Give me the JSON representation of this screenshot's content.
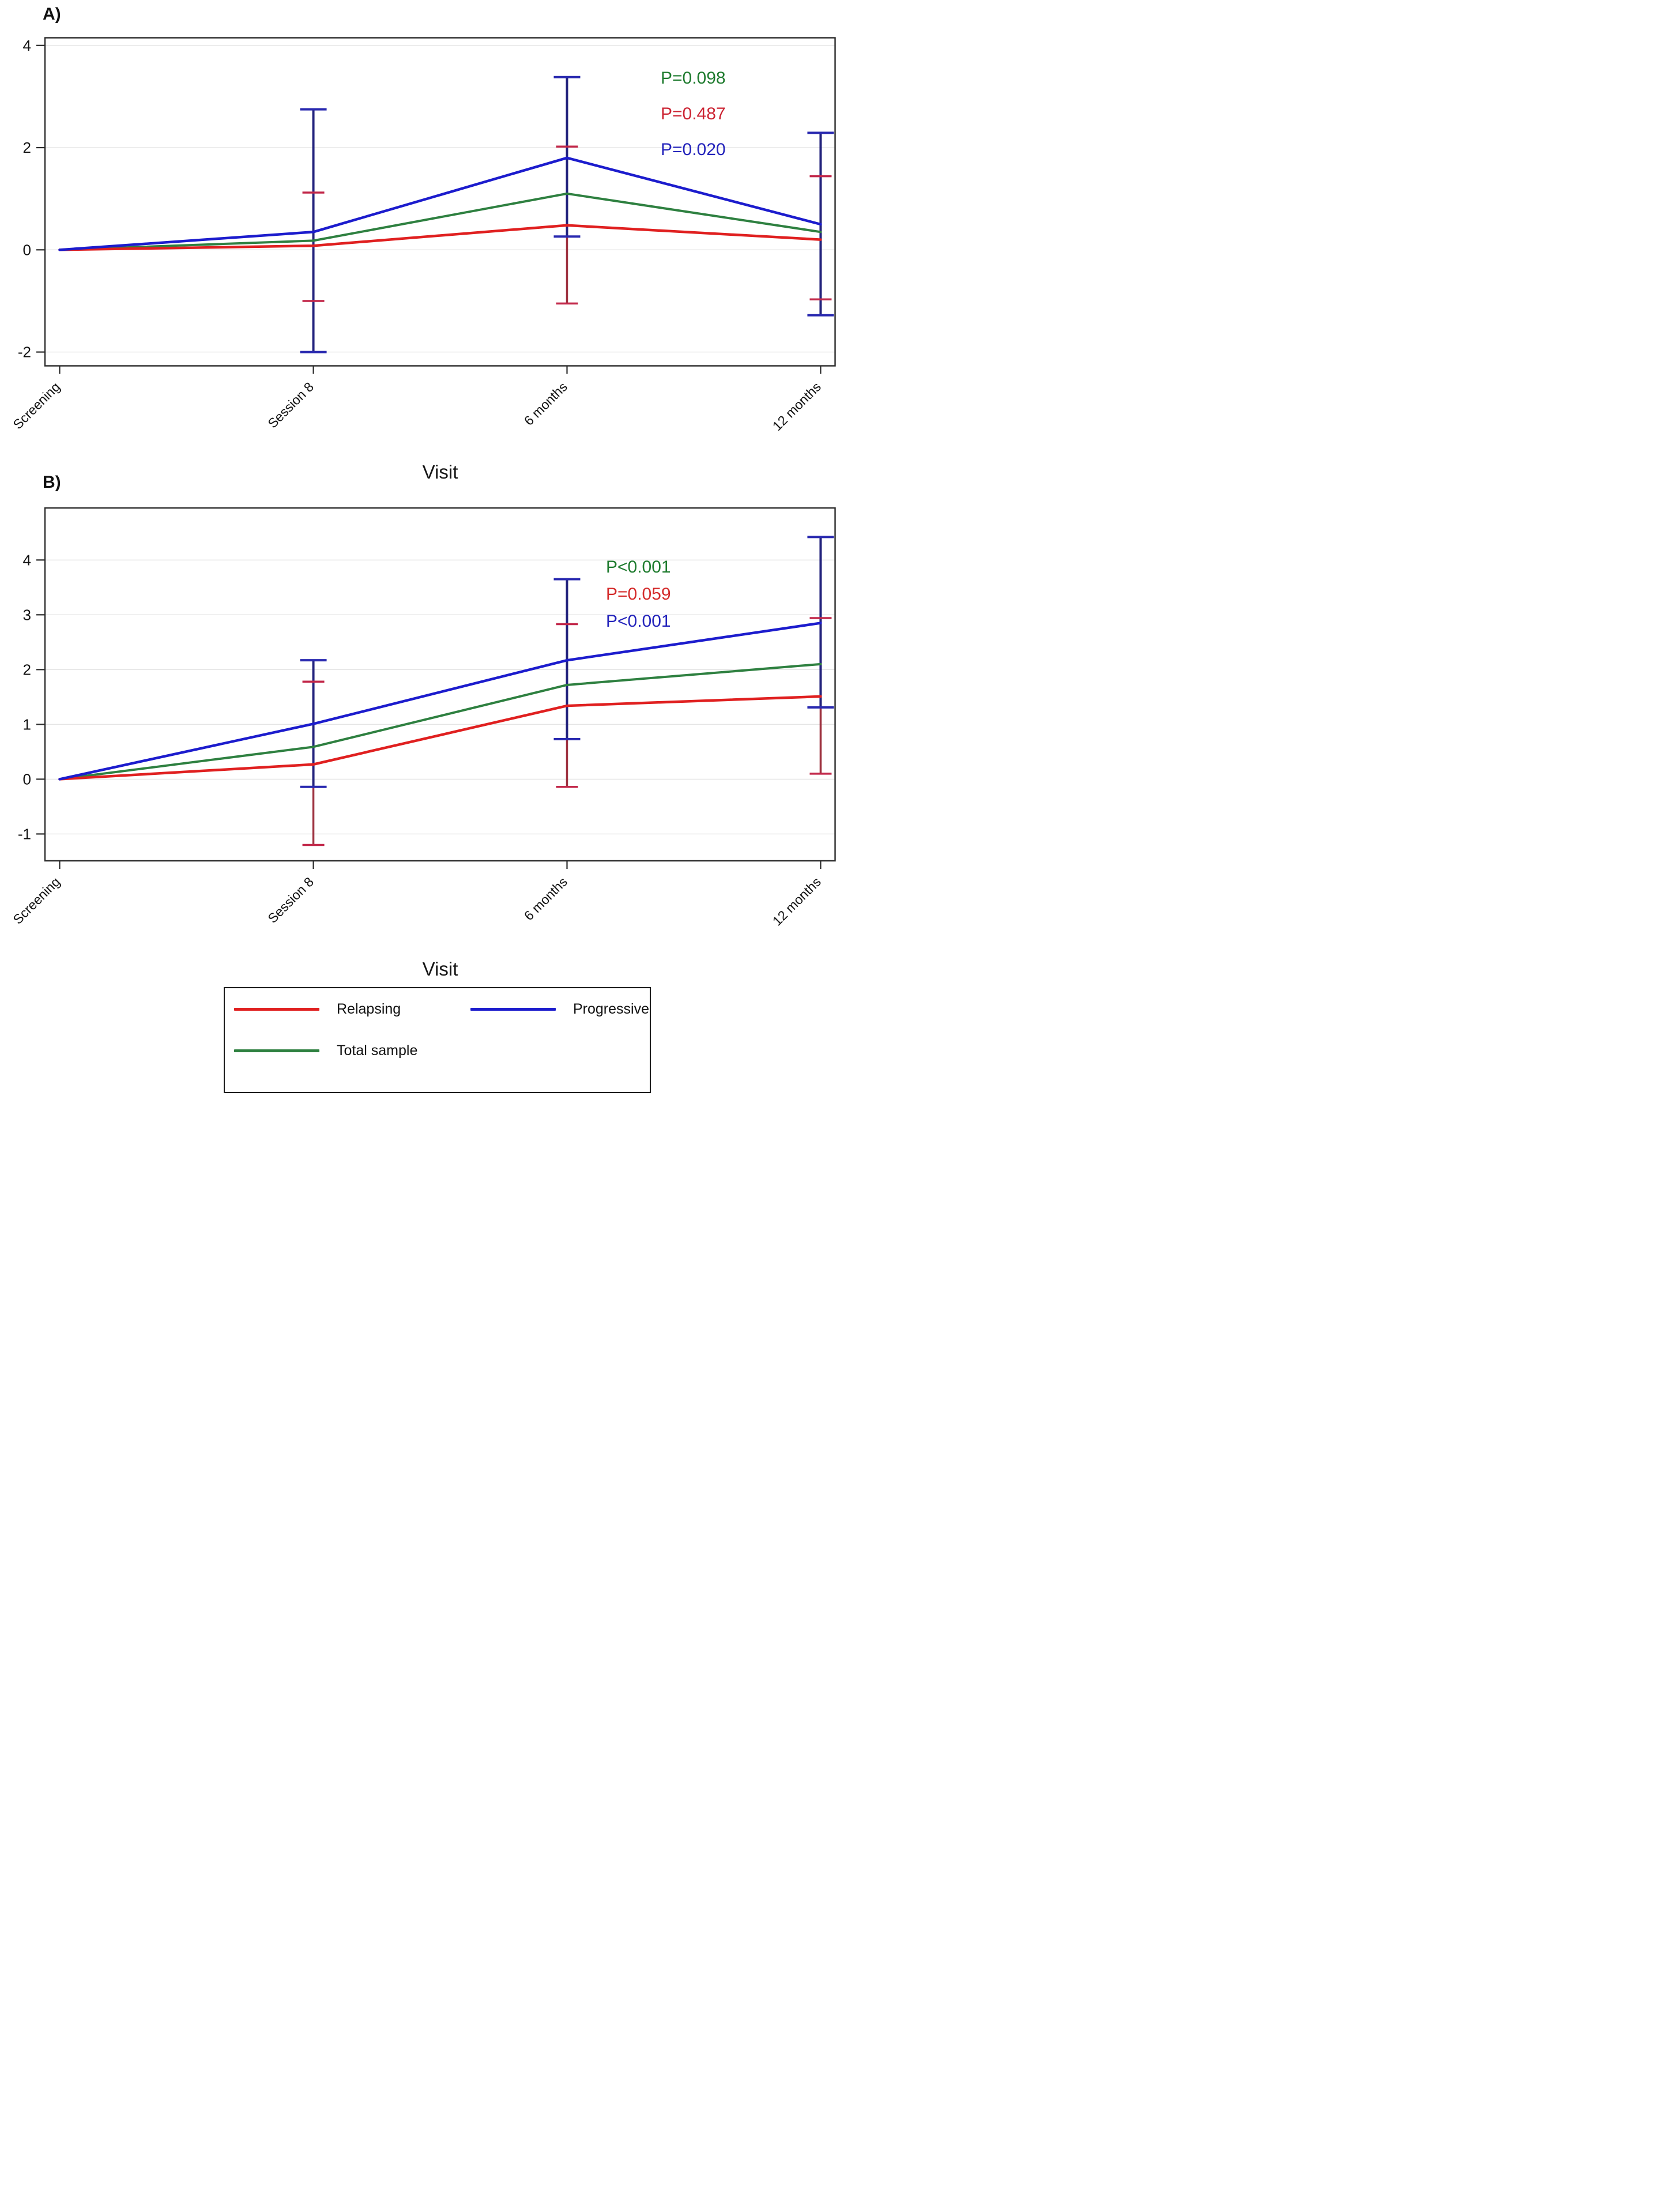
{
  "figure": {
    "panels": [
      {
        "label": "A)"
      },
      {
        "label": "B)"
      }
    ],
    "x_axis_title": "Visit"
  },
  "legend": {
    "items": [
      {
        "name": "relapsing",
        "label": "Relapsing",
        "color": "#e02020"
      },
      {
        "name": "progressive",
        "label": "Progressive",
        "color": "#1c1ccd"
      },
      {
        "name": "total",
        "label": "Total sample",
        "color": "#2e8040"
      }
    ]
  },
  "chart_data": [
    {
      "type": "line",
      "panel": "A",
      "xlabel": "Visit",
      "categories": [
        "Screening",
        "Session 8",
        "6 months",
        "12 months"
      ],
      "yticks": [
        -2,
        0,
        2,
        4
      ],
      "ylim": [
        -2.27,
        4.15
      ],
      "grid": true,
      "series": [
        {
          "name": "Total sample",
          "color": "#2e8040",
          "values": [
            0,
            0.18,
            1.1,
            0.35
          ]
        },
        {
          "name": "Relapsing",
          "color": "#e02020",
          "bar_color": "#9e3240",
          "cap_color": "#c2284a",
          "values": [
            0,
            0.08,
            0.48,
            0.2
          ],
          "ci_low": [
            null,
            -1.0,
            -1.05,
            -0.97
          ],
          "ci_high": [
            null,
            1.12,
            2.02,
            1.44
          ]
        },
        {
          "name": "Progressive",
          "color": "#1c1ccd",
          "bar_color": "#23237d",
          "cap_color": "#2a2ab0",
          "values": [
            0,
            0.35,
            1.8,
            0.5
          ],
          "ci_low": [
            null,
            -2.0,
            0.26,
            -1.28
          ],
          "ci_high": [
            null,
            2.75,
            3.38,
            2.29
          ]
        }
      ],
      "p_values": [
        {
          "text": "P=0.098",
          "color": "#1e7b2e"
        },
        {
          "text": "P=0.487",
          "color": "#cc2433"
        },
        {
          "text": "P=0.020",
          "color": "#2323bb"
        }
      ]
    },
    {
      "type": "line",
      "panel": "B",
      "xlabel": "Visit",
      "categories": [
        "Screening",
        "Session 8",
        "6 months",
        "12 months"
      ],
      "yticks": [
        -1,
        0,
        1,
        2,
        3,
        4
      ],
      "ylim": [
        -1.49,
        4.95
      ],
      "grid": true,
      "series": [
        {
          "name": "Total sample",
          "color": "#2e8040",
          "values": [
            0,
            0.59,
            1.72,
            2.1
          ]
        },
        {
          "name": "Relapsing",
          "color": "#e02020",
          "bar_color": "#9e3240",
          "cap_color": "#c2284a",
          "values": [
            0,
            0.27,
            1.34,
            1.51
          ],
          "ci_low": [
            null,
            -1.2,
            -0.14,
            0.1
          ],
          "ci_high": [
            null,
            1.78,
            2.83,
            2.94
          ]
        },
        {
          "name": "Progressive",
          "color": "#1c1ccd",
          "bar_color": "#23237d",
          "cap_color": "#2a2ab0",
          "values": [
            0,
            1.01,
            2.17,
            2.85
          ],
          "ci_low": [
            null,
            -0.14,
            0.73,
            1.31
          ],
          "ci_high": [
            null,
            2.17,
            3.65,
            4.42
          ]
        }
      ],
      "p_values": [
        {
          "text": "P<0.001",
          "color": "#1e7b2e"
        },
        {
          "text": "P=0.059",
          "color": "#d42a2a"
        },
        {
          "text": "P<0.001",
          "color": "#2323bb"
        }
      ]
    }
  ]
}
